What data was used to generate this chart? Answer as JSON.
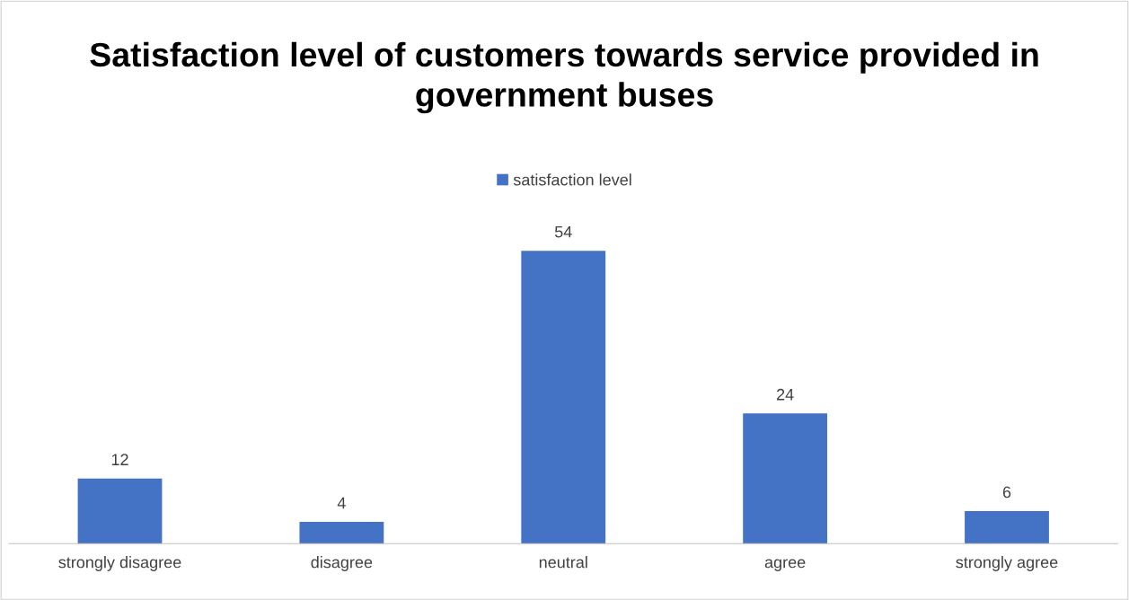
{
  "chart_data": {
    "type": "bar",
    "title": "Satisfaction level of customers towards service provided in government buses",
    "categories": [
      "strongly disagree",
      "disagree",
      "neutral",
      "agree",
      "strongly agree"
    ],
    "series": [
      {
        "name": "satisfaction level",
        "color": "#4472c4",
        "values": [
          12,
          4,
          54,
          24,
          6
        ]
      }
    ],
    "data_labels": true,
    "legend": "top",
    "grid": false
  }
}
